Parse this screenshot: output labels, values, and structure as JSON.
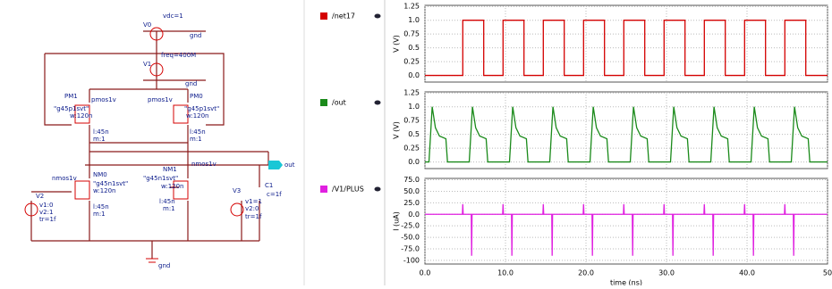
{
  "schematic": {
    "labels": [
      "vdc=1",
      "V0",
      "gnd",
      "freq=400M",
      "V1",
      "gnd",
      "PM1",
      "pmos1v",
      "\"g45p1svt\"",
      "w:120n",
      "l:45n",
      "m:1",
      "PM0",
      "pmos1v",
      "\"g45p1svt\"",
      "w:120n",
      "l:45n",
      "m:1",
      "out",
      "NM0",
      "nmos1v",
      "\"g45n1svt\"",
      "w:120n",
      "l:45n",
      "m:1",
      "NM1",
      "nmos1v",
      "\"g45n1svt\"",
      "w:120n",
      "l:45n",
      "m:1",
      "V2",
      "v1:0",
      "v2:1",
      "tr=1f",
      "V3",
      "v1=1",
      "v2:0",
      "tr=1f",
      "C1",
      "c=1f",
      "gnd"
    ]
  },
  "chart_data": [
    {
      "type": "line",
      "ylabel": "V (V)",
      "grid": true,
      "x": [
        0,
        4.7,
        4.7,
        7.3,
        7.3,
        9.7,
        9.7,
        12.3,
        12.3,
        14.7,
        14.7,
        17.3,
        17.3,
        19.7,
        19.7,
        22.3,
        22.3,
        24.7,
        24.7,
        27.3,
        27.3,
        29.7,
        29.7,
        32.3,
        32.3,
        34.7,
        34.7,
        37.3,
        37.3,
        39.7,
        39.7,
        42.3,
        42.3,
        44.7,
        44.7,
        47.3,
        47.3,
        50
      ],
      "series": [
        {
          "name": "/net17",
          "color": "#d40000",
          "values": [
            0,
            0,
            1,
            1,
            0,
            0,
            1,
            1,
            0,
            0,
            1,
            1,
            0,
            0,
            1,
            1,
            0,
            0,
            1,
            1,
            0,
            0,
            1,
            1,
            0,
            0,
            1,
            1,
            0,
            0,
            1,
            1,
            0,
            0,
            1,
            1,
            0,
            0
          ]
        }
      ],
      "xlim": [
        0,
        50
      ],
      "xticks": [
        {
          "value": 0,
          "label": "0.0"
        },
        {
          "value": 10,
          "label": "10.0"
        },
        {
          "value": 20,
          "label": "20.0"
        },
        {
          "value": 30,
          "label": "30.0"
        },
        {
          "value": 40,
          "label": "40.0"
        },
        50
      ],
      "ylim": [
        -0.12,
        1.27
      ],
      "yticks": [
        {
          "value": 0,
          "label": "0.0"
        },
        0.25,
        0.5,
        0.75,
        {
          "value": 1,
          "label": "1.0"
        },
        1.25
      ]
    },
    {
      "type": "line",
      "ylabel": "V (V)",
      "grid": true,
      "x": [
        0,
        0.5,
        0.9,
        1.3,
        1.8,
        2.6,
        2.8,
        5.5,
        5.9,
        6.3,
        6.8,
        7.6,
        7.8,
        10.5,
        10.9,
        11.3,
        11.8,
        12.6,
        12.8,
        15.5,
        15.9,
        16.3,
        16.8,
        17.6,
        17.8,
        20.5,
        20.9,
        21.3,
        21.8,
        22.6,
        22.8,
        25.5,
        25.9,
        26.3,
        26.8,
        27.6,
        27.8,
        30.5,
        30.9,
        31.3,
        31.8,
        32.6,
        32.8,
        35.5,
        35.9,
        36.3,
        36.8,
        37.6,
        37.8,
        40.5,
        40.9,
        41.3,
        41.8,
        42.6,
        42.8,
        45.5,
        45.9,
        46.3,
        46.8,
        47.6,
        47.8,
        50
      ],
      "series": [
        {
          "name": "/out",
          "color": "#1a8a1a",
          "values": [
            0,
            0,
            1,
            0.62,
            0.47,
            0.42,
            0,
            0,
            1,
            0.62,
            0.47,
            0.42,
            0,
            0,
            1,
            0.62,
            0.47,
            0.42,
            0,
            0,
            1,
            0.62,
            0.47,
            0.42,
            0,
            0,
            1,
            0.62,
            0.47,
            0.42,
            0,
            0,
            1,
            0.62,
            0.47,
            0.42,
            0,
            0,
            1,
            0.62,
            0.47,
            0.42,
            0,
            0,
            1,
            0.62,
            0.47,
            0.42,
            0,
            0,
            1,
            0.62,
            0.47,
            0.42,
            0,
            0,
            1,
            0.62,
            0.47,
            0.42,
            0,
            0
          ]
        }
      ],
      "xlim": [
        0,
        50
      ],
      "xticks": [
        {
          "value": 0,
          "label": "0.0"
        },
        {
          "value": 10,
          "label": "10.0"
        },
        {
          "value": 20,
          "label": "20.0"
        },
        {
          "value": 30,
          "label": "30.0"
        },
        {
          "value": 40,
          "label": "40.0"
        },
        50
      ],
      "ylim": [
        -0.12,
        1.27
      ],
      "yticks": [
        {
          "value": 0,
          "label": "0.0"
        },
        0.25,
        0.5,
        0.75,
        {
          "value": 1,
          "label": "1.0"
        },
        1.25
      ]
    },
    {
      "type": "line",
      "ylabel": "I (uA)",
      "xlabel": "time (ns)",
      "grid": true,
      "x": [
        0,
        4.65,
        4.7,
        4.75,
        5.75,
        5.8,
        5.85,
        9.65,
        9.7,
        9.75,
        10.75,
        10.8,
        10.85,
        14.65,
        14.7,
        14.75,
        15.75,
        15.8,
        15.85,
        19.65,
        19.7,
        19.75,
        20.75,
        20.8,
        20.85,
        24.65,
        24.7,
        24.75,
        25.75,
        25.8,
        25.85,
        29.65,
        29.7,
        29.75,
        30.75,
        30.8,
        30.85,
        34.65,
        34.7,
        34.75,
        35.75,
        35.8,
        35.85,
        39.65,
        39.7,
        39.75,
        40.75,
        40.8,
        40.85,
        44.65,
        44.7,
        44.75,
        45.75,
        45.8,
        45.85,
        50
      ],
      "series": [
        {
          "name": "/V1/PLUS",
          "color": "#e020e0",
          "values": [
            0,
            0,
            22,
            0,
            0,
            -90,
            0,
            0,
            22,
            0,
            0,
            -90,
            0,
            0,
            22,
            0,
            0,
            -90,
            0,
            0,
            22,
            0,
            0,
            -90,
            0,
            0,
            22,
            0,
            0,
            -90,
            0,
            0,
            22,
            0,
            0,
            -90,
            0,
            0,
            22,
            0,
            0,
            -90,
            0,
            0,
            22,
            0,
            0,
            -90,
            0,
            0,
            22,
            0,
            0,
            -90,
            0,
            0
          ]
        }
      ],
      "xlim": [
        0,
        50
      ],
      "xticks": [
        {
          "value": 0,
          "label": "0.0"
        },
        {
          "value": 10,
          "label": "10.0"
        },
        {
          "value": 20,
          "label": "20.0"
        },
        {
          "value": 30,
          "label": "30.0"
        },
        {
          "value": 40,
          "label": "40.0"
        },
        50
      ],
      "ylim": [
        -108,
        78
      ],
      "yticks": [
        -100,
        {
          "value": -75,
          "label": "-75.0"
        },
        {
          "value": -50,
          "label": "-50.0"
        },
        {
          "value": -25,
          "label": "-25.0"
        },
        {
          "value": 0,
          "label": "0.0"
        },
        {
          "value": 25,
          "label": "25.0"
        },
        {
          "value": 50,
          "label": "50.0"
        },
        {
          "value": 75,
          "label": "75.0"
        }
      ]
    }
  ]
}
